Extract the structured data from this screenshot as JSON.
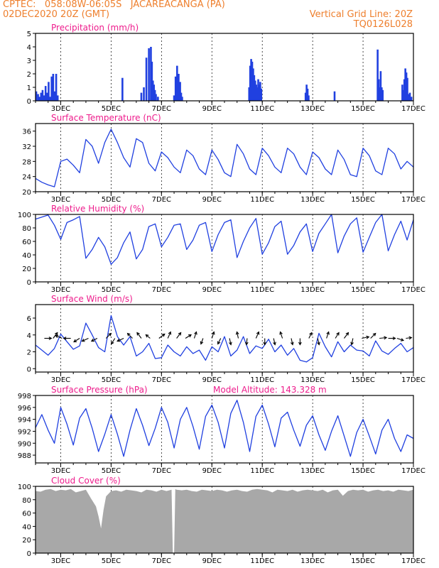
{
  "header": {
    "line1_left": "CPTEC:   058:08W-06:05S   JACAREACANGA (PA)",
    "line2_left": "02DEC2020 20Z (GMT)",
    "line2_right": "Vertical Grid Line: 20Z",
    "line3_right": "TQ0126L028"
  },
  "colors": {
    "header": "#ee7f2d",
    "panel_title": "#ee1c8c",
    "series": "#2040e0",
    "cloud_fill": "#a8a8a8",
    "axis": "#000000"
  },
  "chart_data": [
    {
      "id": "precip",
      "type": "bar",
      "title": "Precipitation (mm/h)",
      "ylim": [
        0,
        5
      ],
      "yticks": [
        0,
        1,
        2,
        3,
        4,
        5
      ],
      "xlim": [
        2.0,
        17.0
      ],
      "xticks": [
        {
          "x": 3,
          "label": "3DEC"
        },
        {
          "x": 5,
          "label": "5DEC"
        },
        {
          "x": 7,
          "label": "7DEC"
        },
        {
          "x": 9,
          "label": "9DEC"
        },
        {
          "x": 11,
          "label": "11DEC"
        },
        {
          "x": 13,
          "label": "13DEC"
        },
        {
          "x": 15,
          "label": "15DEC"
        },
        {
          "x": 17,
          "label": "17DEC"
        }
      ],
      "x": [
        2.03,
        2.1,
        2.16,
        2.22,
        2.28,
        2.34,
        2.4,
        2.46,
        2.52,
        2.58,
        2.64,
        2.7,
        2.76,
        2.82,
        2.88,
        5.45,
        6.2,
        6.3,
        6.4,
        6.5,
        6.58,
        6.62,
        6.66,
        6.7,
        6.74,
        6.78,
        6.86,
        7.5,
        7.56,
        7.62,
        7.68,
        7.74,
        7.78,
        7.82,
        10.48,
        10.52,
        10.56,
        10.6,
        10.64,
        10.68,
        10.72,
        10.76,
        10.8,
        10.84,
        10.88,
        10.92,
        10.96,
        12.72,
        12.76,
        12.8,
        12.84,
        13.87,
        15.58,
        15.62,
        15.66,
        15.7,
        15.74,
        15.78,
        16.56,
        16.6,
        16.64,
        16.68,
        16.72,
        16.76,
        16.8,
        16.86,
        16.92
      ],
      "values": [
        0.7,
        0.5,
        0.3,
        0.6,
        0.8,
        0.4,
        1.1,
        0.6,
        1.4,
        0.3,
        1.8,
        2.0,
        0.7,
        2.0,
        0.4,
        1.7,
        0.6,
        1.0,
        3.2,
        3.9,
        4.0,
        2.9,
        1.5,
        1.2,
        0.8,
        0.5,
        0.3,
        0.4,
        1.8,
        2.6,
        2.0,
        1.4,
        0.6,
        0.3,
        1.0,
        2.6,
        3.1,
        2.9,
        2.4,
        1.9,
        1.5,
        1.2,
        1.0,
        1.6,
        1.2,
        1.4,
        0.9,
        0.6,
        1.2,
        0.9,
        0.4,
        0.7,
        3.8,
        1.6,
        1.0,
        2.2,
        1.0,
        0.8,
        1.2,
        0.8,
        1.6,
        2.4,
        2.1,
        1.7,
        0.5,
        0.6,
        0.3
      ]
    },
    {
      "id": "temp",
      "type": "line",
      "title": "Surface Temperature (nC)",
      "ylim": [
        20,
        38
      ],
      "yticks": [
        20,
        24,
        28,
        32,
        36
      ],
      "xlim": [
        2.0,
        17.0
      ],
      "xticks": [
        {
          "x": 3,
          "label": "3DEC"
        },
        {
          "x": 5,
          "label": "5DEC"
        },
        {
          "x": 7,
          "label": "7DEC"
        },
        {
          "x": 9,
          "label": "9DEC"
        },
        {
          "x": 11,
          "label": "11DEC"
        },
        {
          "x": 13,
          "label": "13DEC"
        },
        {
          "x": 15,
          "label": "15DEC"
        },
        {
          "x": 17,
          "label": "17DEC"
        }
      ],
      "x": [
        2.0,
        2.25,
        2.5,
        2.75,
        3.0,
        3.25,
        3.5,
        3.75,
        4.0,
        4.25,
        4.5,
        4.75,
        5.0,
        5.25,
        5.5,
        5.75,
        6.0,
        6.25,
        6.5,
        6.75,
        7.0,
        7.25,
        7.5,
        7.75,
        8.0,
        8.25,
        8.5,
        8.75,
        9.0,
        9.25,
        9.5,
        9.75,
        10.0,
        10.25,
        10.5,
        10.75,
        11.0,
        11.25,
        11.5,
        11.75,
        12.0,
        12.25,
        12.5,
        12.75,
        13.0,
        13.25,
        13.5,
        13.75,
        14.0,
        14.25,
        14.5,
        14.75,
        15.0,
        15.25,
        15.5,
        15.75,
        16.0,
        16.25,
        16.5,
        16.75,
        17.0
      ],
      "values": [
        23.5,
        22.5,
        21.8,
        21.3,
        28.0,
        28.6,
        27.0,
        25.0,
        33.8,
        32.0,
        27.5,
        33.0,
        36.5,
        33.0,
        29.0,
        26.5,
        34.0,
        33.0,
        27.5,
        25.5,
        30.5,
        29.0,
        26.5,
        25.0,
        31.0,
        29.5,
        26.0,
        24.5,
        31.0,
        28.5,
        25.0,
        24.0,
        32.5,
        30.0,
        26.0,
        24.5,
        31.5,
        29.5,
        26.5,
        25.0,
        31.5,
        30.0,
        26.5,
        24.5,
        30.5,
        29.0,
        26.0,
        24.5,
        31.0,
        28.5,
        24.5,
        24.0,
        31.5,
        29.5,
        25.5,
        24.5,
        31.5,
        30.0,
        26.0,
        28.0,
        26.5
      ]
    },
    {
      "id": "rh",
      "type": "line",
      "title": "Relative Humidity (%)",
      "ylim": [
        0,
        100
      ],
      "yticks": [
        0,
        20,
        40,
        60,
        80,
        100
      ],
      "xlim": [
        2.0,
        17.0
      ],
      "xticks": [
        {
          "x": 3,
          "label": "3DEC"
        },
        {
          "x": 5,
          "label": "5DEC"
        },
        {
          "x": 7,
          "label": "7DEC"
        },
        {
          "x": 9,
          "label": "9DEC"
        },
        {
          "x": 11,
          "label": "11DEC"
        },
        {
          "x": 13,
          "label": "13DEC"
        },
        {
          "x": 15,
          "label": "15DEC"
        },
        {
          "x": 17,
          "label": "17DEC"
        }
      ],
      "x": [
        2.0,
        2.25,
        2.5,
        2.75,
        3.0,
        3.25,
        3.5,
        3.75,
        4.0,
        4.25,
        4.5,
        4.75,
        5.0,
        5.25,
        5.5,
        5.75,
        6.0,
        6.25,
        6.5,
        6.75,
        7.0,
        7.25,
        7.5,
        7.75,
        8.0,
        8.25,
        8.5,
        8.75,
        9.0,
        9.25,
        9.5,
        9.75,
        10.0,
        10.25,
        10.5,
        10.75,
        11.0,
        11.25,
        11.5,
        11.75,
        12.0,
        12.25,
        12.5,
        12.75,
        13.0,
        13.25,
        13.5,
        13.75,
        14.0,
        14.25,
        14.5,
        14.75,
        15.0,
        15.25,
        15.5,
        15.75,
        16.0,
        16.25,
        16.5,
        16.75,
        17.0
      ],
      "values": [
        93.0,
        96.0,
        99.0,
        84.0,
        63.0,
        88.0,
        92.0,
        97.0,
        35.0,
        48.0,
        66.0,
        52.0,
        26.0,
        36.0,
        58.0,
        74.0,
        34.0,
        48.0,
        82.0,
        86.0,
        52.0,
        66.0,
        84.0,
        86.0,
        48.0,
        62.0,
        84.0,
        88.0,
        45.0,
        70.0,
        88.0,
        92.0,
        36.0,
        60.0,
        80.0,
        94.0,
        41.0,
        58.0,
        82.0,
        90.0,
        41.0,
        54.0,
        74.0,
        86.0,
        45.0,
        72.0,
        86.0,
        100.0,
        43.0,
        68.0,
        86.0,
        95.0,
        44.0,
        66.0,
        88.0,
        100.0,
        46.0,
        70.0,
        90.0,
        62.0,
        92.0
      ]
    },
    {
      "id": "wind",
      "type": "line",
      "title": "Surface Wind (m/s)",
      "ylim": [
        -0.4,
        7.6
      ],
      "yticks": [
        0,
        2,
        4,
        6
      ],
      "xlim": [
        2.0,
        17.0
      ],
      "xticks": [
        {
          "x": 3,
          "label": "3DEC"
        },
        {
          "x": 5,
          "label": "5DEC"
        },
        {
          "x": 7,
          "label": "7DEC"
        },
        {
          "x": 9,
          "label": "9DEC"
        },
        {
          "x": 11,
          "label": "11DEC"
        },
        {
          "x": 13,
          "label": "13DEC"
        },
        {
          "x": 15,
          "label": "15DEC"
        },
        {
          "x": 17,
          "label": "17DEC"
        }
      ],
      "x": [
        2.0,
        2.25,
        2.5,
        2.75,
        3.0,
        3.25,
        3.5,
        3.75,
        4.0,
        4.25,
        4.5,
        4.75,
        5.0,
        5.25,
        5.5,
        5.75,
        6.0,
        6.25,
        6.5,
        6.75,
        7.0,
        7.25,
        7.5,
        7.75,
        8.0,
        8.25,
        8.5,
        8.75,
        9.0,
        9.25,
        9.5,
        9.75,
        10.0,
        10.25,
        10.5,
        10.75,
        11.0,
        11.25,
        11.5,
        11.75,
        12.0,
        12.25,
        12.5,
        12.75,
        13.0,
        13.25,
        13.5,
        13.75,
        14.0,
        14.25,
        14.5,
        14.75,
        15.0,
        15.25,
        15.5,
        15.75,
        16.0,
        16.25,
        16.5,
        16.75,
        17.0
      ],
      "values": [
        2.8,
        2.2,
        1.6,
        2.4,
        4.1,
        3.2,
        2.3,
        2.7,
        5.4,
        4.0,
        2.5,
        2.0,
        6.3,
        3.8,
        2.8,
        3.8,
        1.5,
        2.0,
        3.0,
        1.2,
        1.3,
        2.8,
        2.0,
        1.5,
        2.6,
        1.8,
        2.2,
        1.0,
        2.6,
        2.0,
        3.8,
        1.5,
        2.2,
        3.8,
        1.8,
        2.7,
        2.4,
        3.5,
        2.0,
        2.8,
        1.6,
        2.4,
        1.0,
        0.8,
        1.3,
        4.2,
        2.6,
        1.4,
        3.2,
        2.0,
        2.8,
        2.2,
        2.1,
        1.5,
        3.3,
        2.1,
        1.7,
        2.4,
        3.0,
        2.0,
        2.5
      ]
    },
    {
      "id": "wind_vectors",
      "type": "scatter",
      "title": "",
      "x": [
        2.35,
        2.7,
        3.05,
        3.4,
        3.75,
        4.1,
        4.45,
        4.8,
        5.15,
        5.5,
        5.85,
        6.2,
        6.55,
        6.9,
        7.25,
        7.6,
        7.95,
        8.3,
        8.65,
        9.0,
        9.35,
        9.7,
        10.05,
        10.4,
        10.75,
        11.1,
        11.45,
        11.8,
        12.15,
        12.5,
        12.85,
        13.2,
        13.55,
        13.9,
        14.25,
        14.6,
        14.95,
        15.3,
        15.65,
        16.0,
        16.35,
        16.7
      ],
      "u": [
        1.0,
        0.6,
        -0.9,
        -1.0,
        -0.8,
        -0.9,
        -0.8,
        0.7,
        -0.5,
        -0.9,
        -0.7,
        -0.6,
        -0.6,
        0.8,
        0.4,
        0.6,
        0.8,
        0.3,
        -0.3,
        0.3,
        -0.4,
        0.2,
        -0.2,
        -0.1,
        0.4,
        0.0,
        0.2,
        -0.3,
        0.2,
        0.0,
        0.4,
        0.2,
        0.3,
        0.5,
        0.6,
        -0.2,
        1.0,
        0.7,
        1.0,
        1.0,
        0.9,
        0.8
      ],
      "v": [
        0.0,
        0.8,
        0.4,
        0.0,
        -0.5,
        -0.4,
        -0.4,
        0.7,
        -0.8,
        -0.4,
        0.7,
        0.8,
        0.5,
        0.6,
        0.9,
        0.8,
        0.5,
        0.9,
        -0.8,
        0.9,
        -0.8,
        -0.9,
        0.9,
        -0.9,
        0.9,
        -0.9,
        -0.9,
        0.9,
        -0.9,
        -0.9,
        0.8,
        -0.9,
        0.9,
        0.8,
        0.8,
        -0.9,
        0.2,
        0.7,
        0.1,
        0.0,
        -0.3,
        0.1
      ]
    },
    {
      "id": "pressure",
      "type": "line",
      "title": "Surface Pressure (hPa)",
      "annotation": "Model Altitude: 143.328 m",
      "ylim": [
        986.7,
        998.0
      ],
      "yticks": [
        988,
        990,
        992,
        994,
        996,
        998
      ],
      "xlim": [
        2.0,
        17.0
      ],
      "xticks": [
        {
          "x": 3,
          "label": "3DEC"
        },
        {
          "x": 5,
          "label": "5DEC"
        },
        {
          "x": 7,
          "label": "7DEC"
        },
        {
          "x": 9,
          "label": "9DEC"
        },
        {
          "x": 11,
          "label": "11DEC"
        },
        {
          "x": 13,
          "label": "13DEC"
        },
        {
          "x": 15,
          "label": "15DEC"
        },
        {
          "x": 17,
          "label": "17DEC"
        }
      ],
      "x": [
        2.0,
        2.25,
        2.5,
        2.75,
        3.0,
        3.25,
        3.5,
        3.75,
        4.0,
        4.25,
        4.5,
        4.75,
        5.0,
        5.25,
        5.5,
        5.75,
        6.0,
        6.25,
        6.5,
        6.75,
        7.0,
        7.25,
        7.5,
        7.75,
        8.0,
        8.25,
        8.5,
        8.75,
        9.0,
        9.25,
        9.5,
        9.75,
        10.0,
        10.25,
        10.5,
        10.75,
        11.0,
        11.25,
        11.5,
        11.75,
        12.0,
        12.25,
        12.5,
        12.75,
        13.0,
        13.25,
        13.5,
        13.75,
        14.0,
        14.25,
        14.5,
        14.75,
        15.0,
        15.25,
        15.5,
        15.75,
        16.0,
        16.25,
        16.5,
        16.75,
        17.0
      ],
      "values": [
        992.6,
        994.8,
        992.2,
        990.0,
        996.0,
        993.2,
        989.7,
        994.2,
        995.8,
        992.5,
        988.6,
        991.5,
        994.8,
        991.5,
        987.8,
        992.2,
        995.8,
        993.0,
        989.6,
        992.5,
        996.0,
        993.5,
        989.2,
        994.0,
        996.0,
        992.8,
        989.0,
        994.5,
        996.4,
        993.5,
        989.2,
        995.0,
        997.2,
        993.5,
        988.6,
        994.5,
        996.4,
        993.2,
        989.4,
        994.2,
        995.2,
        992.2,
        989.5,
        993.0,
        994.6,
        991.4,
        988.8,
        992.0,
        994.6,
        991.2,
        987.8,
        991.8,
        994.0,
        991.2,
        988.2,
        992.2,
        994.0,
        990.8,
        988.6,
        991.4,
        990.8
      ]
    },
    {
      "id": "cloud",
      "type": "area",
      "title": "Cloud Cover (%)",
      "ylim": [
        0,
        100
      ],
      "yticks": [
        0,
        20,
        40,
        60,
        80,
        100
      ],
      "xlim": [
        2.0,
        17.0
      ],
      "xticks": [
        {
          "x": 3,
          "label": "3DEC"
        },
        {
          "x": 5,
          "label": "5DEC"
        },
        {
          "x": 7,
          "label": "7DEC"
        },
        {
          "x": 9,
          "label": "9DEC"
        },
        {
          "x": 11,
          "label": "11DEC"
        },
        {
          "x": 13,
          "label": "13DEC"
        },
        {
          "x": 15,
          "label": "15DEC"
        },
        {
          "x": 17,
          "label": "17DEC"
        }
      ],
      "x": [
        2.0,
        2.2,
        2.4,
        2.6,
        2.8,
        3.0,
        3.2,
        3.4,
        3.6,
        3.8,
        4.0,
        4.2,
        4.4,
        4.5,
        4.6,
        4.7,
        4.8,
        5.0,
        5.2,
        5.4,
        5.6,
        5.8,
        6.0,
        6.2,
        6.4,
        6.6,
        6.8,
        7.0,
        7.2,
        7.4,
        7.45,
        7.5,
        7.55,
        7.6,
        7.8,
        8.0,
        8.2,
        8.4,
        8.6,
        8.8,
        9.0,
        9.2,
        9.4,
        9.6,
        9.8,
        10.0,
        10.2,
        10.4,
        10.6,
        10.8,
        11.0,
        11.2,
        11.4,
        11.6,
        11.8,
        12.0,
        12.2,
        12.4,
        12.6,
        12.8,
        13.0,
        13.2,
        13.4,
        13.6,
        13.8,
        14.0,
        14.2,
        14.4,
        14.6,
        14.8,
        15.0,
        15.2,
        15.4,
        15.6,
        15.8,
        16.0,
        16.2,
        16.4,
        16.6,
        16.8,
        17.0
      ],
      "values": [
        93,
        92,
        95,
        96,
        93,
        95,
        94,
        96,
        91,
        93,
        95,
        82,
        70,
        55,
        37,
        65,
        85,
        93,
        94,
        92,
        95,
        94,
        93,
        91,
        95,
        94,
        92,
        95,
        93,
        95,
        0,
        0,
        96,
        95,
        94,
        95,
        93,
        92,
        95,
        94,
        93,
        95,
        94,
        92,
        94,
        95,
        93,
        92,
        95,
        96,
        95,
        94,
        91,
        95,
        94,
        93,
        95,
        92,
        94,
        95,
        94,
        93,
        95,
        91,
        94,
        95,
        86,
        93,
        95,
        94,
        95,
        92,
        94,
        95,
        93,
        94,
        92,
        95,
        94,
        93,
        95
      ]
    }
  ]
}
